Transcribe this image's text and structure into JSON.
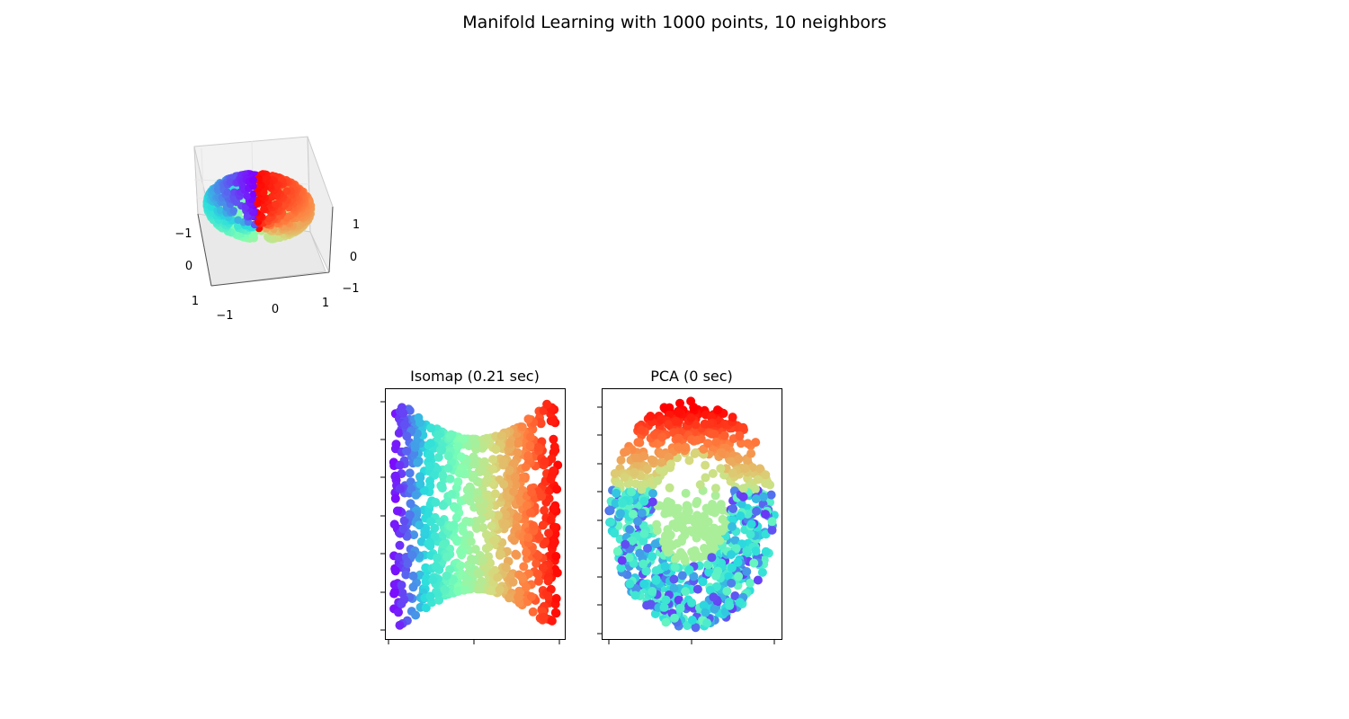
{
  "figure_title": "Manifold Learning with 1000 points, 10 neighbors",
  "chart_data": [
    {
      "type": "scatter3d",
      "title": "",
      "x_ticks": [
        "−1",
        "0",
        "1"
      ],
      "y_ticks": [
        "−1",
        "0",
        "1"
      ],
      "z_ticks": [
        "−1",
        "0",
        "1"
      ],
      "xlim": [
        -1,
        1
      ],
      "ylim": [
        -1,
        1
      ],
      "zlim": [
        -1,
        1
      ],
      "grid": true,
      "colormap": "rainbow",
      "description_of_data": "sphere with a missing cap and a removed slice, colored by angle",
      "n_points": 1000
    },
    {
      "type": "scatter",
      "title": "Isomap (0.21 sec)",
      "colormap": "rainbow",
      "tick_labels_visible": false,
      "x_ticks_count": 3,
      "y_ticks_count": 7,
      "n_points": 1000
    },
    {
      "type": "scatter",
      "title": "PCA (0 sec)",
      "colormap": "rainbow",
      "tick_labels_visible": false,
      "x_ticks_count": 3,
      "y_ticks_count": 8,
      "n_points": 1000
    }
  ],
  "colors": {
    "rainbow": [
      "#8000ff",
      "#2adddd",
      "#80ffb4",
      "#d4dd80",
      "#ff8040",
      "#ff0000"
    ],
    "pane": "#f2f2f2",
    "pane_edge": "#cccccc",
    "grid": "#e6e6e6"
  }
}
